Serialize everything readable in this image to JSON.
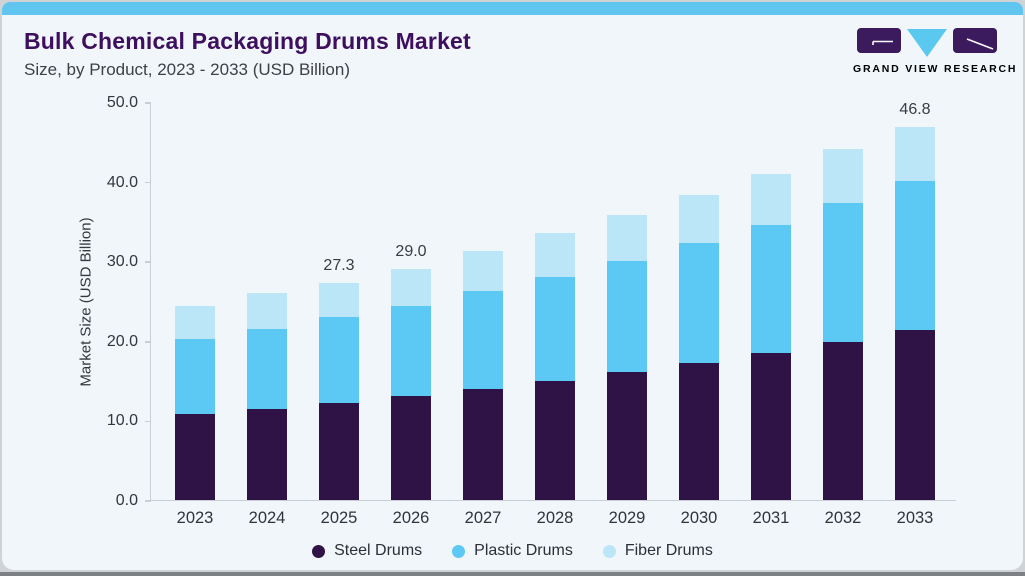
{
  "header": {
    "title": "Bulk Chemical Packaging Drums Market",
    "subtitle": "Size, by Product, 2023 - 2033 (USD Billion)"
  },
  "logo": {
    "wordmark": "GRAND VIEW RESEARCH",
    "purple": "#3b1a5e",
    "blue": "#5bc8f0"
  },
  "chart_data": {
    "type": "bar",
    "stacked": true,
    "title": "Bulk Chemical Packaging Drums Market Size, by Product, 2023 - 2033 (USD Billion)",
    "categories": [
      "2023",
      "2024",
      "2025",
      "2026",
      "2027",
      "2028",
      "2029",
      "2030",
      "2031",
      "2032",
      "2033"
    ],
    "series": [
      {
        "name": "Steel Drums",
        "color": "#301346",
        "values": [
          10.8,
          11.4,
          12.2,
          13.1,
          13.9,
          14.9,
          16.1,
          17.2,
          18.5,
          19.9,
          21.3
        ]
      },
      {
        "name": "Plastic Drums",
        "color": "#5bc9f4",
        "values": [
          9.4,
          10.1,
          10.8,
          11.3,
          12.3,
          13.1,
          13.9,
          15.1,
          16.0,
          17.4,
          18.8
        ]
      },
      {
        "name": "Fiber Drums",
        "color": "#bae6f8",
        "values": [
          4.2,
          4.5,
          4.3,
          4.6,
          5.1,
          5.5,
          5.8,
          6.0,
          6.4,
          6.8,
          6.7
        ]
      }
    ],
    "bar_total_labels": [
      "",
      "",
      "27.3",
      "29.0",
      "",
      "",
      "",
      "",
      "",
      "",
      "46.8"
    ],
    "ylabel": "Market Size (USD Billion)",
    "ylim": [
      0,
      50
    ],
    "y_ticks": [
      "0.0",
      "10.0",
      "20.0",
      "30.0",
      "40.0",
      "50.0"
    ],
    "grid": false,
    "legend_position": "bottom",
    "accent_strip_color": "#61c6ef",
    "axis_color": "#c9ced6"
  }
}
